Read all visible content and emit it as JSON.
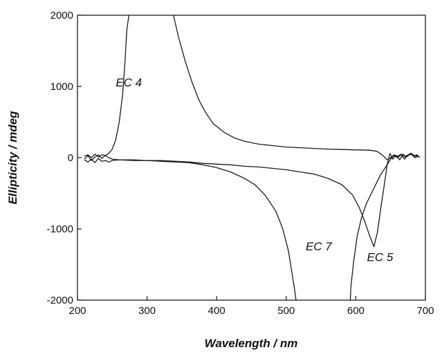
{
  "chart_data": {
    "type": "line",
    "title": "",
    "xlabel": "Wavelength / nm",
    "ylabel": "Ellipticity / mdeg",
    "xlim": [
      200,
      700
    ],
    "ylim": [
      -2000,
      2000
    ],
    "xticks": [
      200,
      300,
      400,
      500,
      600,
      700
    ],
    "yticks": [
      2000,
      1000,
      0,
      -1000,
      -2000
    ],
    "xtick_labels": [
      "200",
      "300",
      "400",
      "500",
      "600",
      "700"
    ],
    "ytick_labels": [
      "2000",
      "1000",
      "0",
      "-1000",
      "-2000"
    ],
    "grid": false,
    "legend": "none",
    "series": [
      {
        "name": "EC 4",
        "points": [
          [
            210,
            20
          ],
          [
            215,
            40
          ],
          [
            220,
            0
          ],
          [
            225,
            50
          ],
          [
            230,
            10
          ],
          [
            235,
            40
          ],
          [
            240,
            30
          ],
          [
            245,
            60
          ],
          [
            250,
            120
          ],
          [
            255,
            250
          ],
          [
            260,
            500
          ],
          [
            265,
            900
          ],
          [
            268,
            1300
          ],
          [
            271,
            1800
          ],
          [
            274,
            2000
          ],
          [
            338,
            2000
          ],
          [
            345,
            1700
          ],
          [
            355,
            1350
          ],
          [
            365,
            1050
          ],
          [
            375,
            800
          ],
          [
            385,
            620
          ],
          [
            395,
            480
          ],
          [
            410,
            360
          ],
          [
            425,
            280
          ],
          [
            440,
            230
          ],
          [
            460,
            190
          ],
          [
            480,
            170
          ],
          [
            500,
            150
          ],
          [
            520,
            140
          ],
          [
            540,
            130
          ],
          [
            560,
            120
          ],
          [
            580,
            115
          ],
          [
            600,
            110
          ],
          [
            620,
            105
          ],
          [
            630,
            90
          ],
          [
            635,
            60
          ],
          [
            640,
            20
          ],
          [
            645,
            -30
          ],
          [
            650,
            0
          ],
          [
            655,
            40
          ],
          [
            660,
            20
          ],
          [
            665,
            50
          ],
          [
            670,
            10
          ],
          [
            675,
            40
          ],
          [
            680,
            60
          ],
          [
            685,
            20
          ],
          [
            690,
            30
          ]
        ],
        "label_position": [
          255,
          1000
        ]
      },
      {
        "name": "EC 7",
        "points": [
          [
            210,
            -30
          ],
          [
            215,
            -60
          ],
          [
            220,
            -20
          ],
          [
            225,
            -70
          ],
          [
            230,
            -10
          ],
          [
            235,
            -50
          ],
          [
            240,
            -40
          ],
          [
            245,
            -60
          ],
          [
            250,
            -40
          ],
          [
            260,
            -30
          ],
          [
            280,
            -40
          ],
          [
            300,
            -40
          ],
          [
            320,
            -50
          ],
          [
            340,
            -60
          ],
          [
            360,
            -70
          ],
          [
            380,
            -100
          ],
          [
            400,
            -140
          ],
          [
            420,
            -200
          ],
          [
            440,
            -290
          ],
          [
            455,
            -380
          ],
          [
            470,
            -530
          ],
          [
            485,
            -750
          ],
          [
            495,
            -1000
          ],
          [
            503,
            -1300
          ],
          [
            508,
            -1600
          ],
          [
            512,
            -1850
          ],
          [
            514,
            -2000
          ],
          [
            592,
            -2000
          ],
          [
            593,
            -1800
          ],
          [
            597,
            -1450
          ],
          [
            602,
            -1100
          ],
          [
            608,
            -850
          ],
          [
            615,
            -650
          ],
          [
            625,
            -450
          ],
          [
            635,
            -250
          ],
          [
            645,
            -100
          ],
          [
            650,
            -20
          ],
          [
            655,
            30
          ],
          [
            660,
            0
          ],
          [
            665,
            40
          ],
          [
            670,
            -20
          ],
          [
            675,
            30
          ],
          [
            680,
            50
          ],
          [
            685,
            0
          ],
          [
            690,
            20
          ]
        ],
        "label_position": [
          528,
          -1300
        ]
      },
      {
        "name": "EC 5",
        "points": [
          [
            210,
            -20
          ],
          [
            215,
            30
          ],
          [
            220,
            -40
          ],
          [
            225,
            10
          ],
          [
            230,
            40
          ],
          [
            235,
            -10
          ],
          [
            240,
            30
          ],
          [
            245,
            0
          ],
          [
            250,
            -20
          ],
          [
            260,
            -30
          ],
          [
            280,
            -30
          ],
          [
            300,
            -40
          ],
          [
            320,
            -40
          ],
          [
            340,
            -50
          ],
          [
            360,
            -60
          ],
          [
            380,
            -80
          ],
          [
            400,
            -90
          ],
          [
            420,
            -100
          ],
          [
            440,
            -120
          ],
          [
            460,
            -130
          ],
          [
            480,
            -150
          ],
          [
            500,
            -170
          ],
          [
            520,
            -200
          ],
          [
            540,
            -230
          ],
          [
            560,
            -290
          ],
          [
            580,
            -380
          ],
          [
            595,
            -520
          ],
          [
            605,
            -700
          ],
          [
            613,
            -900
          ],
          [
            620,
            -1100
          ],
          [
            626,
            -1250
          ],
          [
            631,
            -1050
          ],
          [
            636,
            -700
          ],
          [
            641,
            -380
          ],
          [
            645,
            -100
          ],
          [
            649,
            60
          ],
          [
            653,
            -20
          ],
          [
            658,
            30
          ],
          [
            663,
            -30
          ],
          [
            668,
            50
          ],
          [
            673,
            10
          ],
          [
            678,
            60
          ],
          [
            683,
            20
          ],
          [
            688,
            40
          ],
          [
            692,
            0
          ]
        ],
        "label_position": [
          616,
          -1450
        ]
      }
    ]
  }
}
